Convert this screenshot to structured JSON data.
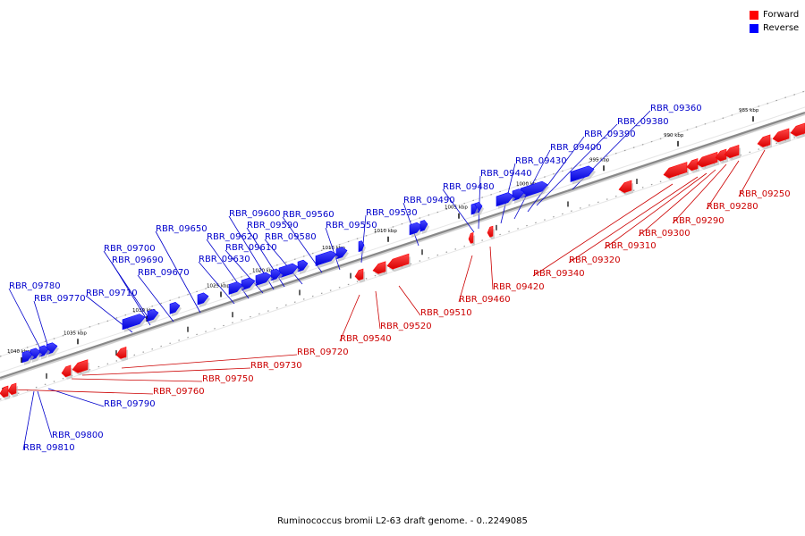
{
  "legend": {
    "items": [
      {
        "label": "Forward",
        "color": "#ff0000"
      },
      {
        "label": "Reverse",
        "color": "#0000ff"
      }
    ]
  },
  "colors": {
    "forward": "#ff0000",
    "forward_label": "#cc0000",
    "reverse": "#0000ff",
    "reverse_label": "#0000cc",
    "backbone": "#888888"
  },
  "caption": "Ruminococcus bromii L2-63 draft genome. - 0..2249085",
  "ticks": [
    {
      "label": "985 kbp",
      "kbp": 985
    },
    {
      "label": "990 kbp",
      "kbp": 990
    },
    {
      "label": "995 kbp",
      "kbp": 995
    },
    {
      "label": "1000 kbp",
      "kbp": 1000
    },
    {
      "label": "1005 kbp",
      "kbp": 1005
    },
    {
      "label": "1010 kbp",
      "kbp": 1010
    },
    {
      "label": "1015 kbp",
      "kbp": 1015
    },
    {
      "label": "1020 kbp",
      "kbp": 1020
    },
    {
      "label": "1025 kbp",
      "kbp": 1025
    },
    {
      "label": "1030 kbp",
      "kbp": 1030
    },
    {
      "label": "1035 kbp",
      "kbp": 1035
    },
    {
      "label": "1040 kbp",
      "kbp": 1040
    }
  ],
  "genes_reverse": [
    {
      "label": "RBR_09360"
    },
    {
      "label": "RBR_09380"
    },
    {
      "label": "RBR_09390"
    },
    {
      "label": "RBR_09400"
    },
    {
      "label": "RBR_09430"
    },
    {
      "label": "RBR_09440"
    },
    {
      "label": "RBR_09480"
    },
    {
      "label": "RBR_09490"
    },
    {
      "label": "RBR_09530"
    },
    {
      "label": "RBR_09550"
    },
    {
      "label": "RBR_09560"
    },
    {
      "label": "RBR_09580"
    },
    {
      "label": "RBR_09590"
    },
    {
      "label": "RBR_09600"
    },
    {
      "label": "RBR_09610"
    },
    {
      "label": "RBR_09620"
    },
    {
      "label": "RBR_09630"
    },
    {
      "label": "RBR_09650"
    },
    {
      "label": "RBR_09670"
    },
    {
      "label": "RBR_09690"
    },
    {
      "label": "RBR_09700"
    },
    {
      "label": "RBR_09710"
    },
    {
      "label": "RBR_09770"
    },
    {
      "label": "RBR_09780"
    },
    {
      "label": "RBR_09790"
    },
    {
      "label": "RBR_09800"
    },
    {
      "label": "RBR_09810"
    }
  ],
  "genes_forward": [
    {
      "label": "RBR_09250"
    },
    {
      "label": "RBR_09280"
    },
    {
      "label": "RBR_09290"
    },
    {
      "label": "RBR_09300"
    },
    {
      "label": "RBR_09310"
    },
    {
      "label": "RBR_09320"
    },
    {
      "label": "RBR_09340"
    },
    {
      "label": "RBR_09420"
    },
    {
      "label": "RBR_09460"
    },
    {
      "label": "RBR_09510"
    },
    {
      "label": "RBR_09520"
    },
    {
      "label": "RBR_09540"
    },
    {
      "label": "RBR_09720"
    },
    {
      "label": "RBR_09730"
    },
    {
      "label": "RBR_09750"
    },
    {
      "label": "RBR_09760"
    }
  ]
}
